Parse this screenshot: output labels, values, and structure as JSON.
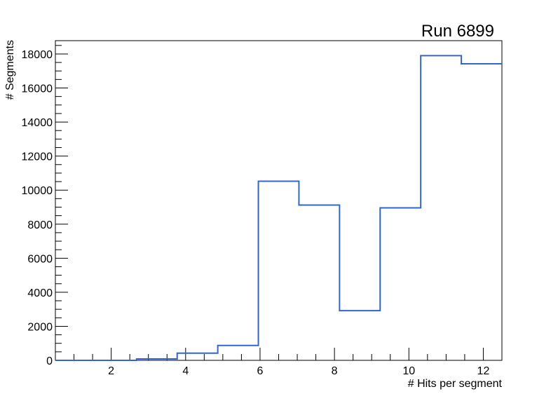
{
  "chart_data": {
    "type": "bar",
    "style": "step-histogram",
    "title": "Run 6899",
    "xlabel": "# Hits per segment",
    "ylabel": "# Segments",
    "xlim": [
      0.5,
      12.5
    ],
    "ylim": [
      0,
      18780
    ],
    "bin_edges": [
      0.5,
      1.591,
      2.682,
      3.773,
      4.864,
      5.955,
      7.045,
      8.136,
      9.227,
      10.318,
      11.409,
      12.5
    ],
    "values": [
      0,
      0,
      80,
      420,
      875,
      10520,
      9120,
      2920,
      8960,
      17900,
      17420
    ],
    "x_ticks": [
      2,
      4,
      6,
      8,
      10,
      12
    ],
    "x_tick_labels": [
      "2",
      "4",
      "6",
      "8",
      "10",
      "12"
    ],
    "y_ticks": [
      0,
      2000,
      4000,
      6000,
      8000,
      10000,
      12000,
      14000,
      16000,
      18000
    ],
    "y_tick_labels": [
      "0",
      "2000",
      "4000",
      "6000",
      "8000",
      "10000",
      "12000",
      "14000",
      "16000",
      "18000"
    ],
    "line_color": "#3366cc",
    "grid": false,
    "legend": "none"
  }
}
